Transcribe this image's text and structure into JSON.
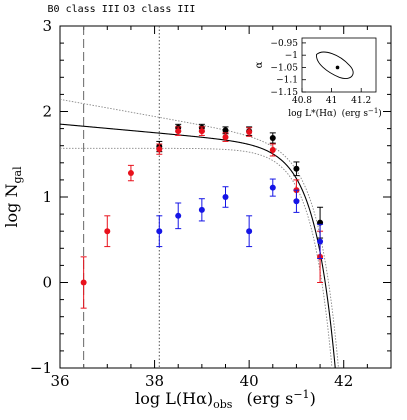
{
  "chart_data": {
    "type": "scatter",
    "title": "",
    "xlabel": "log L(Hα)obs   (erg s⁻¹)",
    "ylabel": "log Ngal",
    "xlim": [
      36,
      43
    ],
    "ylim": [
      -1,
      3
    ],
    "xticks": [
      "36",
      "38",
      "40",
      "42"
    ],
    "yticks": [
      "−1",
      "0",
      "1",
      "2",
      "3"
    ],
    "grid": false,
    "vertical_markers": [
      {
        "label": "B0 class III",
        "x": 36.5,
        "style": "dashed"
      },
      {
        "label": "O3 class III",
        "x": 38.1,
        "style": "dotted"
      }
    ],
    "series": [
      {
        "color": "#000000",
        "points": [
          {
            "x": 38.1,
            "y": 1.59,
            "err": 0.06
          },
          {
            "x": 38.5,
            "y": 1.81,
            "err": 0.04
          },
          {
            "x": 39.0,
            "y": 1.81,
            "err": 0.04
          },
          {
            "x": 39.5,
            "y": 1.78,
            "err": 0.04
          },
          {
            "x": 40.0,
            "y": 1.77,
            "err": 0.05
          },
          {
            "x": 40.5,
            "y": 1.69,
            "err": 0.06
          },
          {
            "x": 41.0,
            "y": 1.33,
            "err": 0.08
          },
          {
            "x": 41.5,
            "y": 0.7,
            "err": 0.18
          }
        ]
      },
      {
        "color": "#e8111c",
        "points": [
          {
            "x": 36.5,
            "y": 0.0,
            "err": 0.3
          },
          {
            "x": 37.0,
            "y": 0.6,
            "err": 0.18
          },
          {
            "x": 37.5,
            "y": 1.28,
            "err": 0.09
          },
          {
            "x": 38.1,
            "y": 1.56,
            "err": 0.06
          },
          {
            "x": 38.5,
            "y": 1.77,
            "err": 0.05
          },
          {
            "x": 39.0,
            "y": 1.77,
            "err": 0.05
          },
          {
            "x": 39.5,
            "y": 1.7,
            "err": 0.05
          },
          {
            "x": 40.0,
            "y": 1.76,
            "err": 0.05
          },
          {
            "x": 40.5,
            "y": 1.55,
            "err": 0.07
          },
          {
            "x": 41.0,
            "y": 1.08,
            "err": 0.12
          },
          {
            "x": 41.5,
            "y": 0.3,
            "err": 0.3
          }
        ]
      },
      {
        "color": "#1515e6",
        "points": [
          {
            "x": 38.1,
            "y": 0.6,
            "err": 0.18
          },
          {
            "x": 38.5,
            "y": 0.78,
            "err": 0.15
          },
          {
            "x": 39.0,
            "y": 0.85,
            "err": 0.13
          },
          {
            "x": 39.5,
            "y": 1.0,
            "err": 0.12
          },
          {
            "x": 40.0,
            "y": 0.6,
            "err": 0.18
          },
          {
            "x": 40.5,
            "y": 1.11,
            "err": 0.1
          },
          {
            "x": 41.0,
            "y": 0.95,
            "err": 0.13
          },
          {
            "x": 41.5,
            "y": 0.48,
            "err": 0.2
          }
        ]
      }
    ],
    "fit": {
      "function": "schechter",
      "log_L_star": 41.05,
      "alpha": -1.05,
      "log_norm": 1.6
    },
    "fit_bounds": {
      "lower": {
        "log_L_star": 40.98,
        "alpha": -1.0,
        "log_norm": 1.57
      },
      "upper": {
        "log_L_star": 41.12,
        "alpha": -1.1,
        "log_norm": 1.63
      }
    },
    "inset": {
      "xlabel": "log L*(Hα)   (erg s⁻¹)",
      "ylabel": "α",
      "xlim": [
        40.8,
        41.3
      ],
      "ylim": [
        -1.15,
        -0.93
      ],
      "xticks": [
        "40.8",
        "41",
        "41.2"
      ],
      "yticks": [
        "−0.95",
        "−1",
        "−1.05",
        "−1.1",
        "−1.15"
      ],
      "best_fit": {
        "x": 41.04,
        "y": -1.05
      }
    }
  }
}
